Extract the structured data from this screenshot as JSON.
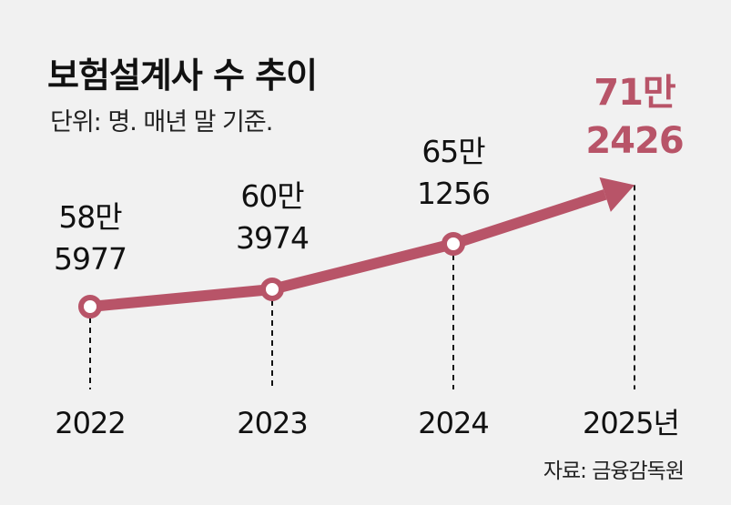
{
  "chart_data": {
    "type": "line",
    "title": "보험설계사 수 추이",
    "subtitle": "단위: 명. 매년 말 기준.",
    "source": "자료: 금융감독원",
    "categories": [
      "2022",
      "2023",
      "2024",
      "2025년"
    ],
    "values": [
      585977,
      603974,
      651256,
      712426
    ],
    "data_labels": [
      [
        "58만",
        "5977"
      ],
      [
        "60만",
        "3974"
      ],
      [
        "65만",
        "1256"
      ],
      [
        "71만",
        "2426"
      ]
    ],
    "grid": false,
    "legend": "none",
    "colors": {
      "series": "#b85468",
      "background": "#f1f1f1",
      "text": "#111111"
    }
  }
}
